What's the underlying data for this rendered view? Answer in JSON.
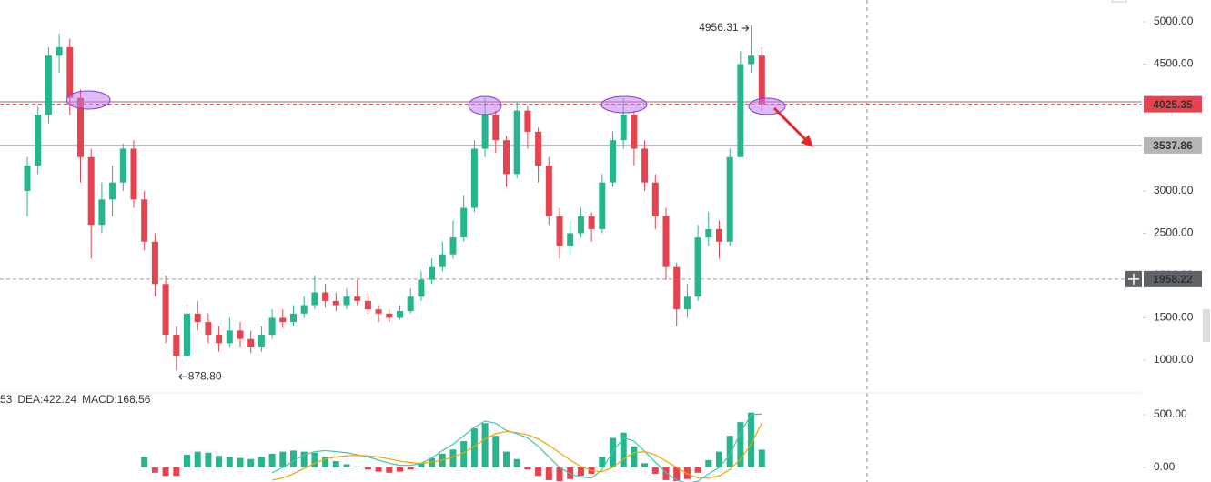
{
  "chart_data": [
    {
      "type": "candlestick",
      "open": [
        3000,
        3300,
        3900,
        4600,
        4700,
        4100,
        3400,
        2600,
        2900,
        3100,
        3500,
        2900,
        2400,
        1900,
        1300,
        1050,
        1550,
        1450,
        1300,
        1200,
        1350,
        1250,
        1150,
        1300,
        1500,
        1450,
        1550,
        1650,
        1800,
        1700,
        1650,
        1750,
        1700,
        1600,
        1550,
        1500,
        1580,
        1750,
        1950,
        2100,
        2250,
        2450,
        2800,
        3500,
        3900,
        3600,
        3200,
        3950,
        3700,
        3300,
        2700,
        2350,
        2500,
        2700,
        2550,
        3100,
        3600,
        3900,
        3500,
        3100,
        2700,
        2100,
        1600,
        1750,
        2450,
        2550,
        2400,
        3400,
        4500,
        4600
      ],
      "high": [
        3400,
        4000,
        4700,
        4860,
        4800,
        4200,
        3500,
        3100,
        3300,
        3560,
        3600,
        3000,
        2500,
        2000,
        1400,
        1650,
        1700,
        1550,
        1400,
        1500,
        1450,
        1350,
        1400,
        1600,
        1600,
        1650,
        1750,
        2000,
        1900,
        1800,
        1850,
        1950,
        1800,
        1650,
        1600,
        1650,
        1850,
        2050,
        2200,
        2400,
        2650,
        2950,
        3600,
        4100,
        3950,
        3650,
        4050,
        4000,
        3750,
        3400,
        2800,
        2650,
        2800,
        2750,
        3200,
        3700,
        4100,
        3950,
        3600,
        3200,
        2800,
        2150,
        1900,
        2600,
        2750,
        2650,
        3500,
        4650,
        4956.31,
        4700
      ],
      "low": [
        2700,
        3200,
        3800,
        4400,
        3900,
        3100,
        2200,
        2500,
        2700,
        3000,
        2800,
        2300,
        1750,
        1200,
        878.8,
        980,
        1350,
        1200,
        1100,
        1150,
        1150,
        1080,
        1100,
        1250,
        1380,
        1400,
        1500,
        1600,
        1620,
        1580,
        1600,
        1650,
        1550,
        1450,
        1450,
        1480,
        1550,
        1700,
        1900,
        2050,
        2200,
        2400,
        2750,
        3400,
        3450,
        3050,
        3150,
        3500,
        3100,
        2600,
        2200,
        2250,
        2450,
        2400,
        2500,
        3050,
        3500,
        3300,
        3000,
        2550,
        1950,
        1400,
        1500,
        1700,
        2350,
        2200,
        2350,
        3400,
        4400,
        3950
      ],
      "close": [
        3300,
        3900,
        4600,
        4700,
        4100,
        3400,
        2600,
        2900,
        3100,
        3500,
        2900,
        2400,
        1900,
        1300,
        1050,
        1550,
        1450,
        1300,
        1200,
        1350,
        1250,
        1150,
        1300,
        1500,
        1450,
        1550,
        1650,
        1800,
        1700,
        1650,
        1750,
        1700,
        1600,
        1550,
        1500,
        1580,
        1750,
        1950,
        2100,
        2250,
        2450,
        2800,
        3500,
        3900,
        3600,
        3200,
        3950,
        3700,
        3300,
        2700,
        2350,
        2500,
        2700,
        2550,
        3100,
        3600,
        3900,
        3500,
        3100,
        2700,
        2100,
        1600,
        1750,
        2450,
        2550,
        2400,
        3400,
        4500,
        4600,
        4025.35
      ],
      "up_color": "#26b58c",
      "down_color": "#e5434f",
      "ylim": [
        634,
        5258
      ],
      "yticks": [
        {
          "value": 1000,
          "label": "1000.00"
        },
        {
          "value": 1500,
          "label": "1500.00"
        },
        {
          "value": 2000,
          "label": "2000.00"
        },
        {
          "value": 2500,
          "label": "2500.00"
        },
        {
          "value": 3000,
          "label": "3000.00"
        },
        {
          "value": 3500,
          "label": "3500.00"
        },
        {
          "value": 4000,
          "label": "4000.00"
        },
        {
          "value": 4500,
          "label": "4500.00"
        },
        {
          "value": 5000,
          "label": "5000.00"
        }
      ],
      "price_lines": [
        {
          "value": 4054,
          "color": "#bdbdbd",
          "style": "solid"
        },
        {
          "value": 4025.35,
          "color": "#e5434f",
          "style": "dashed",
          "label_bg": "#e5434f",
          "label_color": "#ffffff"
        },
        {
          "value": 3537.86,
          "color": "#bdbdbd",
          "style": "solid",
          "label_bg": "#b5b5b5",
          "label_color": "#222222"
        },
        {
          "value": 1958.22,
          "color": "#9e9e9e",
          "style": "dashed",
          "label_bg": "#5f6368",
          "label_color": "#ffffff"
        }
      ],
      "high_marker": 4956.31,
      "low_marker": {
        "value": 878.8,
        "label": "878.80"
      }
    },
    {
      "type": "macd",
      "legend": [
        {
          "text": "53",
          "color": "#26b58c"
        },
        {
          "text": "DEA:422.24",
          "color": "#f0a500"
        },
        {
          "text": "MACD:168.56",
          "color": "#26b58c"
        }
      ],
      "histogram": [
        null,
        null,
        null,
        null,
        null,
        null,
        null,
        null,
        null,
        null,
        null,
        100,
        -50,
        -80,
        -80,
        120,
        150,
        140,
        110,
        100,
        90,
        80,
        100,
        130,
        150,
        160,
        150,
        140,
        100,
        60,
        30,
        10,
        -20,
        -40,
        -50,
        -40,
        -20,
        40,
        90,
        130,
        170,
        250,
        370,
        420,
        300,
        150,
        80,
        -20,
        -80,
        -120,
        -130,
        -110,
        -80,
        -60,
        100,
        280,
        330,
        200,
        40,
        -60,
        -120,
        -130,
        -110,
        -50,
        70,
        150,
        300,
        430,
        520,
        168.56
      ],
      "series": [
        {
          "name": "DIF",
          "color": "#3cc8b4",
          "values": [
            null,
            null,
            null,
            null,
            null,
            null,
            null,
            null,
            null,
            null,
            null,
            null,
            null,
            null,
            null,
            null,
            null,
            null,
            null,
            null,
            null,
            null,
            null,
            -50,
            0,
            60,
            120,
            150,
            160,
            150,
            140,
            120,
            100,
            70,
            40,
            20,
            20,
            40,
            90,
            160,
            220,
            300,
            380,
            440,
            420,
            350,
            320,
            280,
            200,
            100,
            0,
            -60,
            -90,
            -100,
            -20,
            150,
            280,
            250,
            150,
            50,
            -50,
            -120,
            -150,
            -130,
            -60,
            0,
            120,
            330,
            500,
            506.52
          ]
        },
        {
          "name": "DEA",
          "color": "#f0a500",
          "values": [
            null,
            null,
            null,
            null,
            null,
            null,
            null,
            null,
            null,
            null,
            null,
            null,
            null,
            null,
            null,
            null,
            null,
            null,
            null,
            null,
            null,
            null,
            null,
            -120,
            -100,
            -60,
            -10,
            40,
            80,
            100,
            110,
            115,
            110,
            100,
            80,
            60,
            45,
            40,
            50,
            70,
            100,
            140,
            200,
            270,
            320,
            340,
            330,
            310,
            270,
            210,
            140,
            70,
            10,
            -30,
            -40,
            0,
            80,
            140,
            150,
            120,
            60,
            0,
            -60,
            -100,
            -100,
            -80,
            -20,
            80,
            220,
            422.24
          ]
        }
      ],
      "up_color": "#26b58c",
      "down_color": "#e5434f",
      "ylim": [
        -138,
        681
      ],
      "yticks": [
        {
          "value": 0,
          "label": "0.00"
        },
        {
          "value": 500,
          "label": "500.00"
        }
      ]
    }
  ]
}
